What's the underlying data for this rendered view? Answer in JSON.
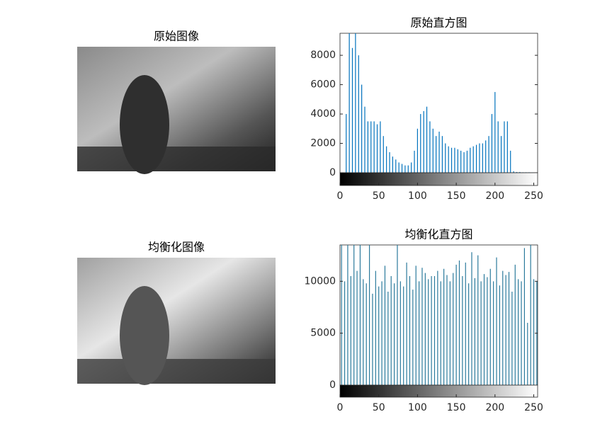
{
  "chart_data": [
    {
      "type": "image",
      "title": "原始图像",
      "tone": "dark"
    },
    {
      "type": "histogram",
      "title": "原始直方图",
      "color": "#0072bd",
      "x": [
        0,
        4,
        8,
        12,
        16,
        20,
        24,
        28,
        32,
        36,
        40,
        44,
        48,
        52,
        56,
        60,
        64,
        68,
        72,
        76,
        80,
        84,
        88,
        92,
        96,
        100,
        104,
        108,
        112,
        116,
        120,
        124,
        128,
        132,
        136,
        140,
        144,
        148,
        152,
        156,
        160,
        164,
        168,
        172,
        176,
        180,
        184,
        188,
        192,
        196,
        200,
        204,
        208,
        212,
        216,
        220,
        224,
        228,
        232,
        236,
        240,
        244,
        248,
        252
      ],
      "values": [
        0,
        0,
        4000,
        9500,
        8500,
        9500,
        8000,
        6000,
        4500,
        3500,
        3500,
        3500,
        3300,
        3500,
        2500,
        1800,
        1400,
        1100,
        900,
        700,
        600,
        500,
        500,
        700,
        1500,
        3000,
        4000,
        4200,
        4500,
        3500,
        3000,
        2500,
        2800,
        2500,
        2000,
        1800,
        1700,
        1700,
        1600,
        1500,
        1400,
        1500,
        1700,
        1800,
        1900,
        2000,
        2000,
        2200,
        2500,
        4000,
        5500,
        3500,
        2500,
        3500,
        3500,
        1500,
        100,
        50,
        50,
        30,
        30,
        30,
        20,
        10
      ],
      "xlim": [
        0,
        255
      ],
      "ylim": [
        0,
        9500
      ],
      "xticks": [
        0,
        50,
        100,
        150,
        200,
        250
      ],
      "yticks": [
        0,
        2000,
        4000,
        6000,
        8000
      ]
    },
    {
      "type": "image",
      "title": "均衡化图像",
      "tone": "light"
    },
    {
      "type": "histogram",
      "title": "均衡化直方图",
      "color": "#2b7a9c",
      "x": [
        2,
        6,
        10,
        14,
        18,
        22,
        26,
        30,
        34,
        38,
        42,
        46,
        50,
        54,
        58,
        62,
        66,
        70,
        74,
        78,
        82,
        86,
        90,
        94,
        98,
        102,
        106,
        110,
        114,
        118,
        122,
        126,
        130,
        134,
        138,
        142,
        146,
        150,
        154,
        158,
        162,
        166,
        170,
        174,
        178,
        182,
        186,
        190,
        194,
        198,
        202,
        206,
        210,
        214,
        218,
        222,
        226,
        230,
        234,
        238,
        242,
        246,
        250,
        254
      ],
      "values": [
        13500,
        10000,
        13500,
        10500,
        13500,
        11000,
        13500,
        10200,
        9800,
        13500,
        8800,
        11000,
        9500,
        10000,
        11500,
        9000,
        10500,
        9800,
        13500,
        10000,
        9500,
        11800,
        10500,
        9200,
        11500,
        10000,
        11300,
        10800,
        10200,
        10500,
        10500,
        11000,
        10000,
        11200,
        10600,
        10000,
        10800,
        11600,
        12000,
        10500,
        11800,
        9800,
        12800,
        10300,
        12500,
        10000,
        10700,
        10400,
        11200,
        10000,
        12300,
        9600,
        11000,
        10600,
        10900,
        9000,
        11600,
        10200,
        10000,
        13200,
        6000,
        13500,
        10200,
        10000
      ],
      "xlim": [
        0,
        255
      ],
      "ylim": [
        0,
        13500
      ],
      "xticks": [
        0,
        50,
        100,
        150,
        200,
        250
      ],
      "yticks": [
        0,
        5000,
        10000
      ]
    }
  ]
}
